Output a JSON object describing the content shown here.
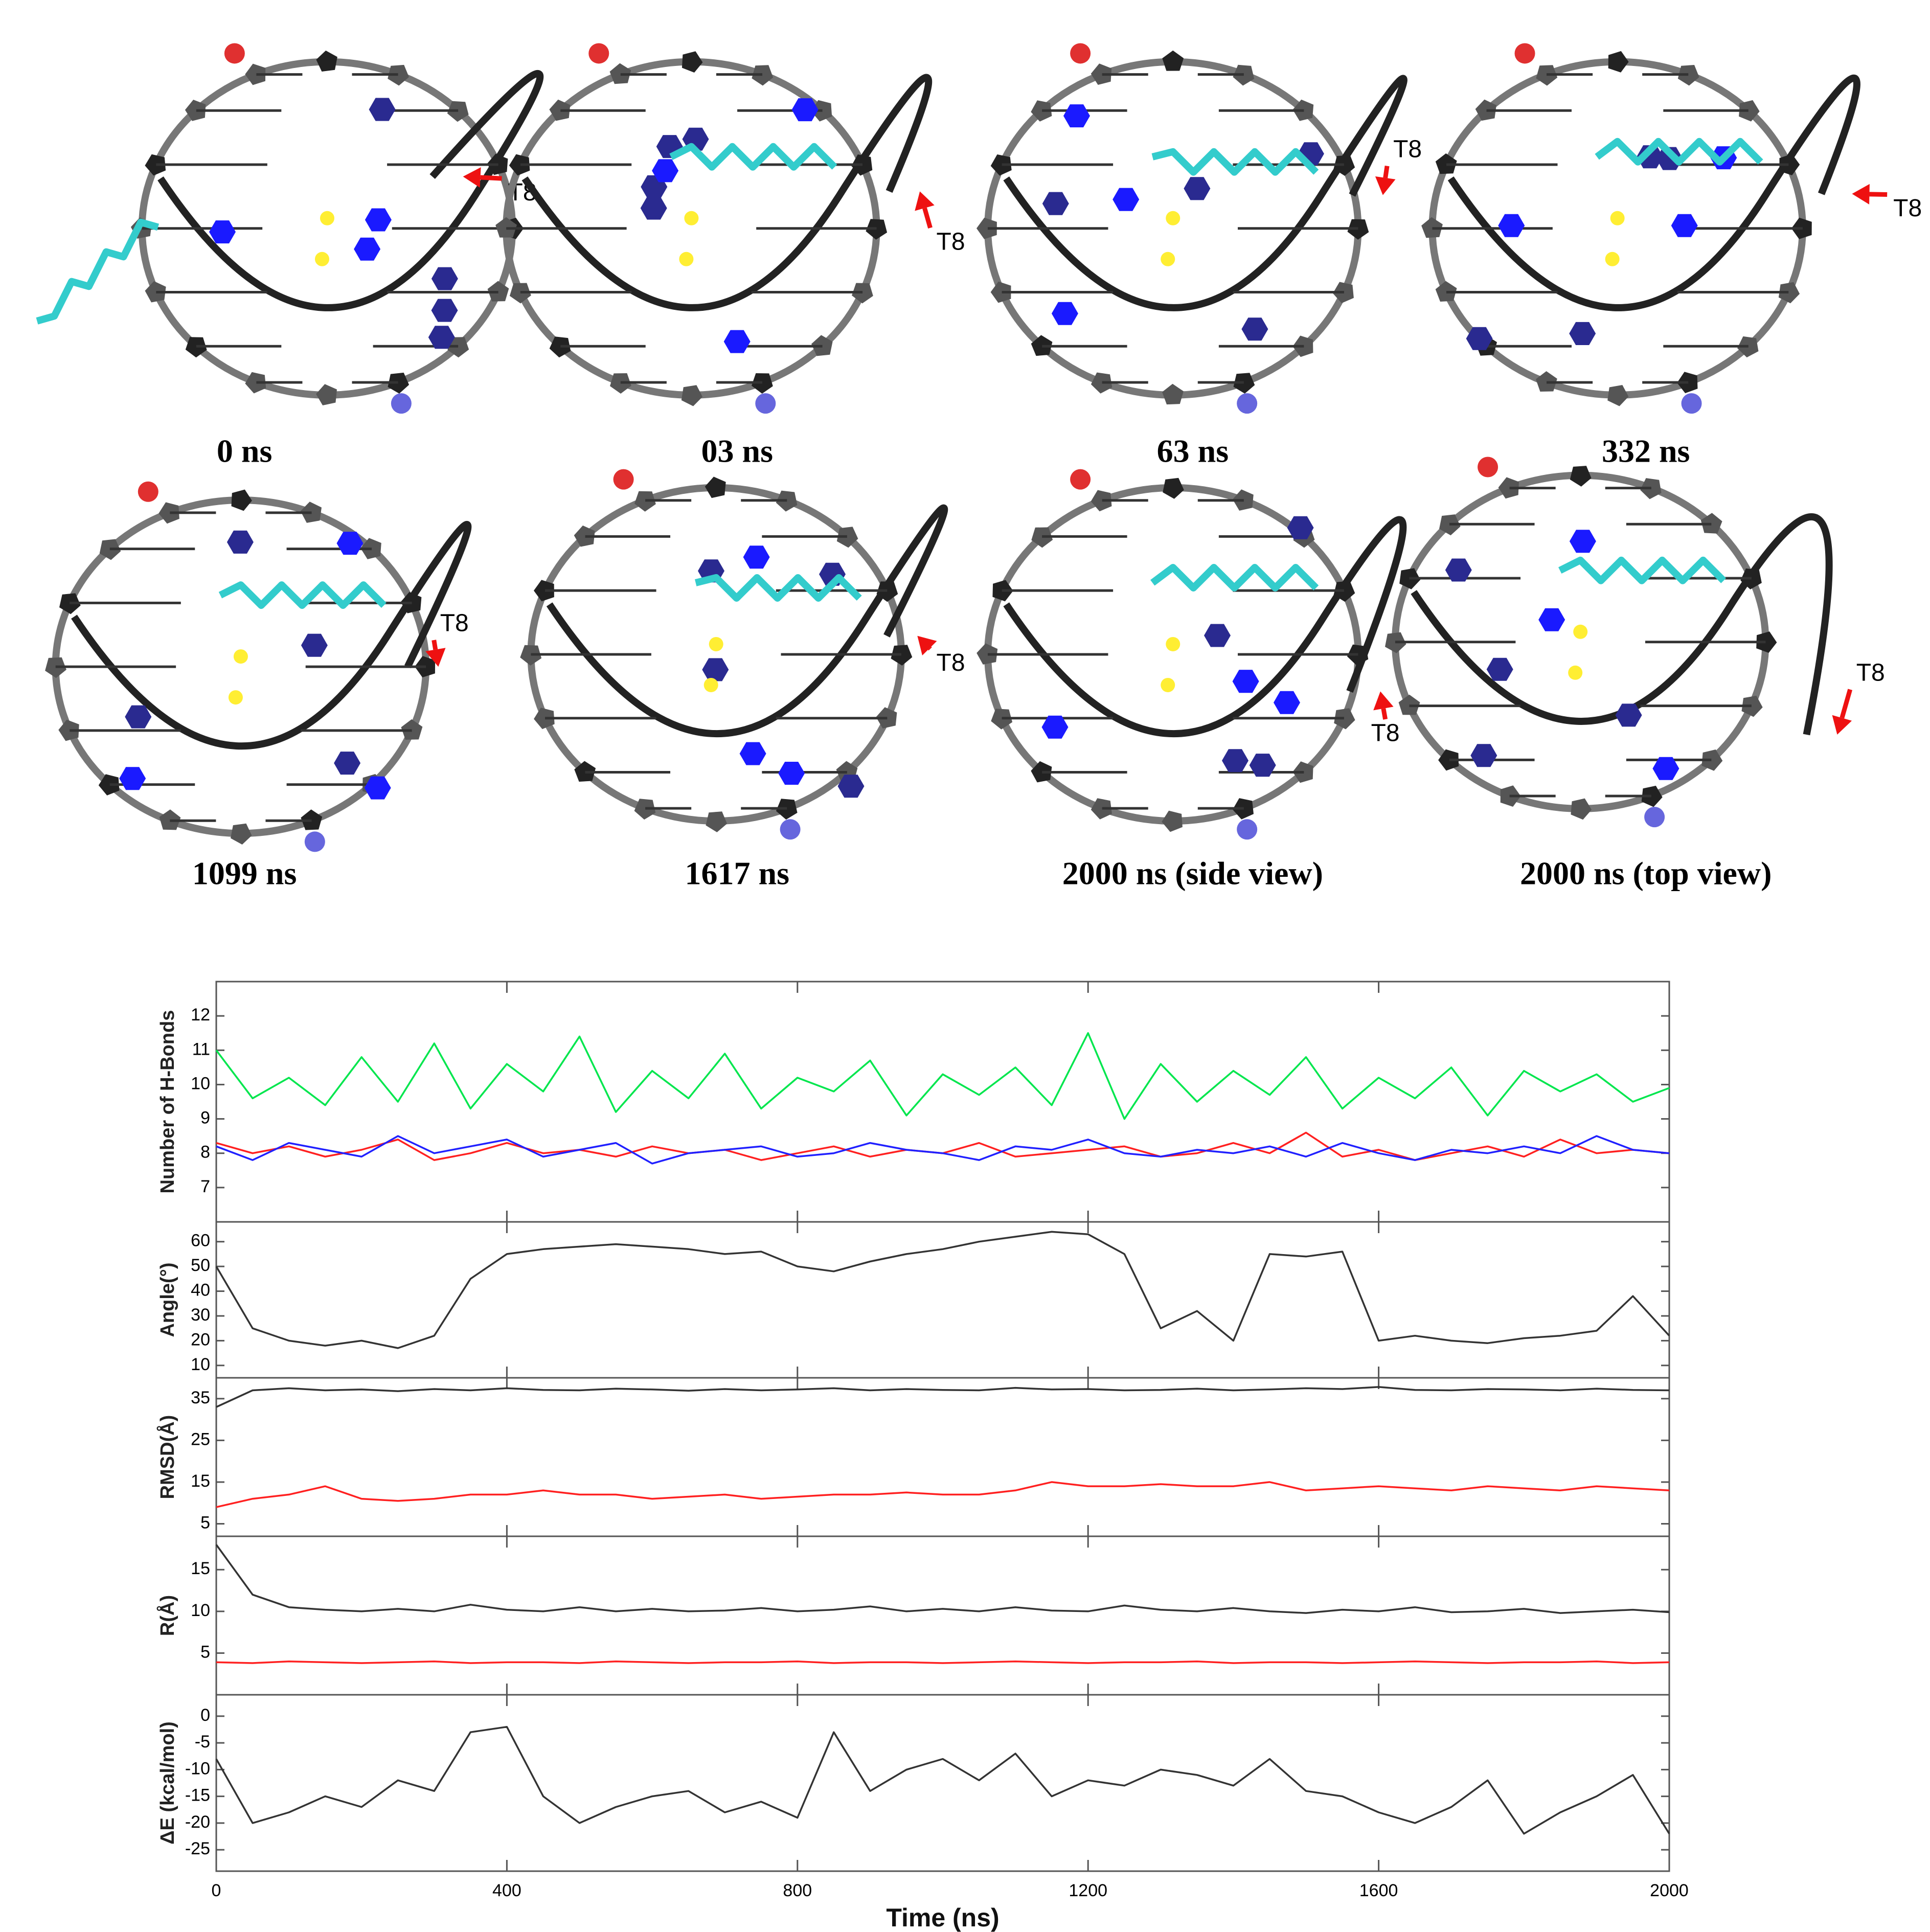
{
  "snapshots": [
    {
      "label": "0 ns",
      "marker": "T8"
    },
    {
      "label": "03 ns",
      "marker": "T8"
    },
    {
      "label": "63 ns",
      "marker": "T8"
    },
    {
      "label": "332 ns",
      "marker": "T8"
    },
    {
      "label": "1099 ns",
      "marker": "T8"
    },
    {
      "label": "1617 ns",
      "marker": "T8"
    },
    {
      "label": "2000 ns (side view)",
      "marker": "T8"
    },
    {
      "label": "2000 ns (top view)",
      "marker": "T8"
    }
  ],
  "chart_data": [
    {
      "type": "line",
      "ylabel": "Number of H-Bonds",
      "x": [
        0,
        50,
        100,
        150,
        200,
        250,
        300,
        350,
        400,
        450,
        500,
        550,
        600,
        650,
        700,
        750,
        800,
        850,
        900,
        950,
        1000,
        1050,
        1100,
        1150,
        1200,
        1250,
        1300,
        1350,
        1400,
        1450,
        1500,
        1550,
        1600,
        1650,
        1700,
        1750,
        1800,
        1850,
        1900,
        1950,
        2000
      ],
      "xlim": [
        0,
        2000
      ],
      "xticks": [
        0,
        400,
        800,
        1200,
        1600,
        2000
      ],
      "ylim": [
        6,
        13
      ],
      "yticks": [
        7,
        8,
        9,
        10,
        11,
        12
      ],
      "series": [
        {
          "color": "#00e64d",
          "values": [
            11,
            9.6,
            10.2,
            9.4,
            10.8,
            9.5,
            11.2,
            9.3,
            10.6,
            9.8,
            11.4,
            9.2,
            10.4,
            9.6,
            10.9,
            9.3,
            10.2,
            9.8,
            10.7,
            9.1,
            10.3,
            9.7,
            10.5,
            9.4,
            11.5,
            9.0,
            10.6,
            9.5,
            10.4,
            9.7,
            10.8,
            9.3,
            10.2,
            9.6,
            10.5,
            9.1,
            10.4,
            9.8,
            10.3,
            9.5,
            9.9
          ]
        },
        {
          "color": "#ff2020",
          "values": [
            8.3,
            8.0,
            8.2,
            7.9,
            8.1,
            8.4,
            7.8,
            8.0,
            8.3,
            8.0,
            8.1,
            7.9,
            8.2,
            8.0,
            8.1,
            7.8,
            8.0,
            8.2,
            7.9,
            8.1,
            8.0,
            8.3,
            7.9,
            8.0,
            8.1,
            8.2,
            7.9,
            8.0,
            8.3,
            8.0,
            8.6,
            7.9,
            8.1,
            7.8,
            8.0,
            8.2,
            7.9,
            8.4,
            8.0,
            8.1,
            8.0
          ]
        },
        {
          "color": "#2020ff",
          "values": [
            8.2,
            7.8,
            8.3,
            8.1,
            7.9,
            8.5,
            8.0,
            8.2,
            8.4,
            7.9,
            8.1,
            8.3,
            7.7,
            8.0,
            8.1,
            8.2,
            7.9,
            8.0,
            8.3,
            8.1,
            8.0,
            7.8,
            8.2,
            8.1,
            8.4,
            8.0,
            7.9,
            8.1,
            8.0,
            8.2,
            7.9,
            8.3,
            8.0,
            7.8,
            8.1,
            8.0,
            8.2,
            8.0,
            8.5,
            8.1,
            8.0
          ]
        }
      ]
    },
    {
      "type": "line",
      "ylabel": "Angle(°)",
      "x": [
        0,
        50,
        100,
        150,
        200,
        250,
        300,
        350,
        400,
        450,
        500,
        550,
        600,
        650,
        700,
        750,
        800,
        850,
        900,
        950,
        1000,
        1050,
        1100,
        1150,
        1200,
        1250,
        1300,
        1350,
        1400,
        1450,
        1500,
        1550,
        1600,
        1650,
        1700,
        1750,
        1800,
        1850,
        1900,
        1950,
        2000
      ],
      "xlim": [
        0,
        2000
      ],
      "xticks": [
        0,
        400,
        800,
        1200,
        1600,
        2000
      ],
      "ylim": [
        5,
        68
      ],
      "yticks": [
        10,
        20,
        30,
        40,
        50,
        60
      ],
      "series": [
        {
          "color": "#333333",
          "values": [
            50,
            25,
            20,
            18,
            20,
            17,
            22,
            45,
            55,
            57,
            58,
            59,
            58,
            57,
            55,
            56,
            50,
            48,
            52,
            55,
            57,
            60,
            62,
            64,
            63,
            55,
            25,
            32,
            20,
            55,
            54,
            56,
            20,
            22,
            20,
            19,
            21,
            22,
            24,
            38,
            22
          ]
        }
      ]
    },
    {
      "type": "line",
      "ylabel": "RMSD(Å)",
      "x": [
        0,
        50,
        100,
        150,
        200,
        250,
        300,
        350,
        400,
        450,
        500,
        550,
        600,
        650,
        700,
        750,
        800,
        850,
        900,
        950,
        1000,
        1050,
        1100,
        1150,
        1200,
        1250,
        1300,
        1350,
        1400,
        1450,
        1500,
        1550,
        1600,
        1650,
        1700,
        1750,
        1800,
        1850,
        1900,
        1950,
        2000
      ],
      "xlim": [
        0,
        2000
      ],
      "xticks": [
        0,
        400,
        800,
        1200,
        1600,
        2000
      ],
      "ylim": [
        2,
        40
      ],
      "yticks": [
        5,
        15,
        25,
        35
      ],
      "series": [
        {
          "color": "#333333",
          "values": [
            33,
            37,
            37.5,
            37,
            37.2,
            36.8,
            37.3,
            37,
            37.5,
            37.1,
            37,
            37.4,
            37.2,
            36.9,
            37.3,
            37,
            37.2,
            37.5,
            37,
            37.3,
            37.1,
            37,
            37.6,
            37.2,
            37.3,
            37,
            37.1,
            37.4,
            37,
            37.2,
            37.5,
            37.3,
            37.8,
            37.1,
            37,
            37.3,
            37.2,
            37,
            37.4,
            37.1,
            37
          ]
        },
        {
          "color": "#ff2020",
          "values": [
            9,
            11,
            12,
            14,
            11,
            10.5,
            11,
            12,
            12,
            13,
            12,
            12,
            11,
            11.5,
            12,
            11,
            11.5,
            12,
            12,
            12.5,
            12,
            12,
            13,
            15,
            14,
            14,
            14.5,
            14,
            14,
            15,
            13,
            13.5,
            14,
            13.5,
            13,
            14,
            13.5,
            13,
            14,
            13.5,
            13
          ]
        }
      ]
    },
    {
      "type": "line",
      "ylabel": "R(Å)",
      "x": [
        0,
        50,
        100,
        150,
        200,
        250,
        300,
        350,
        400,
        450,
        500,
        550,
        600,
        650,
        700,
        750,
        800,
        850,
        900,
        950,
        1000,
        1050,
        1100,
        1150,
        1200,
        1250,
        1300,
        1350,
        1400,
        1450,
        1500,
        1550,
        1600,
        1650,
        1700,
        1750,
        1800,
        1850,
        1900,
        1950,
        2000
      ],
      "xlim": [
        0,
        2000
      ],
      "xticks": [
        0,
        400,
        800,
        1200,
        1600,
        2000
      ],
      "ylim": [
        0,
        19
      ],
      "yticks": [
        5,
        10,
        15
      ],
      "series": [
        {
          "color": "#333333",
          "values": [
            18,
            12,
            10.5,
            10.2,
            10,
            10.3,
            10,
            10.8,
            10.2,
            10,
            10.5,
            10,
            10.3,
            10,
            10.1,
            10.4,
            10,
            10.2,
            10.6,
            10,
            10.3,
            10,
            10.5,
            10.1,
            10,
            10.7,
            10.2,
            10,
            10.4,
            10,
            9.8,
            10.2,
            10,
            10.5,
            9.9,
            10,
            10.3,
            9.8,
            10,
            10.2,
            9.9
          ]
        },
        {
          "color": "#ff2020",
          "values": [
            3.9,
            3.8,
            4.0,
            3.9,
            3.8,
            3.9,
            4.0,
            3.8,
            3.9,
            3.9,
            3.8,
            4.0,
            3.9,
            3.8,
            3.9,
            3.9,
            4.0,
            3.8,
            3.9,
            3.9,
            3.8,
            3.9,
            4.0,
            3.9,
            3.8,
            3.9,
            3.9,
            4.0,
            3.8,
            3.9,
            3.9,
            3.8,
            3.9,
            4.0,
            3.9,
            3.8,
            3.9,
            3.9,
            4.0,
            3.8,
            3.9
          ]
        }
      ]
    },
    {
      "type": "line",
      "ylabel": "ΔE (kcal/mol)",
      "xlabel": "Time (ns)",
      "x": [
        0,
        50,
        100,
        150,
        200,
        250,
        300,
        350,
        400,
        450,
        500,
        550,
        600,
        650,
        700,
        750,
        800,
        850,
        900,
        950,
        1000,
        1050,
        1100,
        1150,
        1200,
        1250,
        1300,
        1350,
        1400,
        1450,
        1500,
        1550,
        1600,
        1650,
        1700,
        1750,
        1800,
        1850,
        1900,
        1950,
        2000
      ],
      "xlim": [
        0,
        2000
      ],
      "xticks": [
        0,
        400,
        800,
        1200,
        1600,
        2000
      ],
      "ylim": [
        -29,
        4
      ],
      "yticks": [
        -25,
        -20,
        -15,
        -10,
        -5,
        0
      ],
      "series": [
        {
          "color": "#333333",
          "values": [
            -8,
            -20,
            -18,
            -15,
            -17,
            -12,
            -14,
            -3,
            -2,
            -15,
            -20,
            -17,
            -15,
            -14,
            -18,
            -16,
            -19,
            -3,
            -14,
            -10,
            -8,
            -12,
            -7,
            -15,
            -12,
            -13,
            -10,
            -11,
            -13,
            -8,
            -14,
            -15,
            -18,
            -20,
            -17,
            -12,
            -22,
            -18,
            -15,
            -11,
            -22
          ]
        }
      ]
    }
  ]
}
